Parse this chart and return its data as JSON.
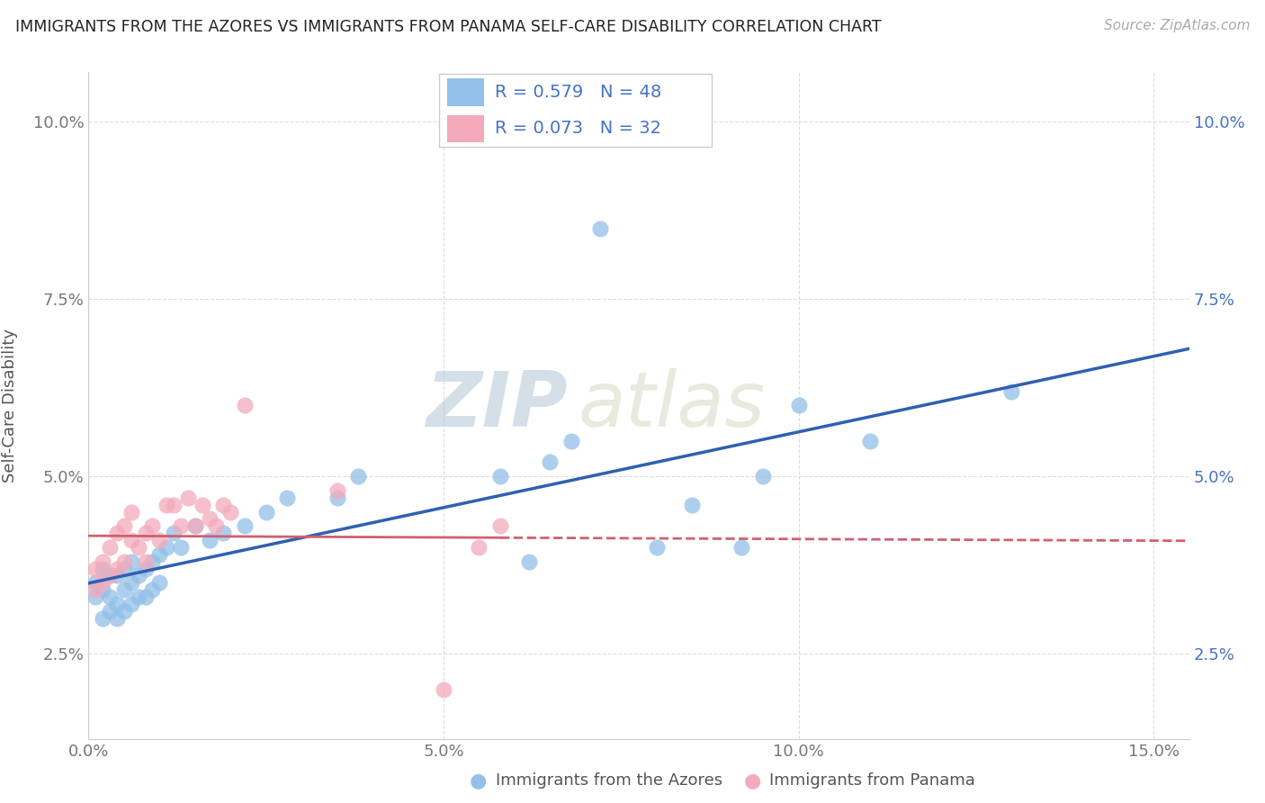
{
  "title": "IMMIGRANTS FROM THE AZORES VS IMMIGRANTS FROM PANAMA SELF-CARE DISABILITY CORRELATION CHART",
  "source": "Source: ZipAtlas.com",
  "ylabel": "Self-Care Disability",
  "xmin": 0.0,
  "xmax": 0.155,
  "ymin": 0.013,
  "ymax": 0.107,
  "xtick_vals": [
    0.0,
    0.05,
    0.1,
    0.15
  ],
  "ytick_vals": [
    0.025,
    0.05,
    0.075,
    0.1
  ],
  "azores_R": "0.579",
  "azores_N": "48",
  "panama_R": "0.073",
  "panama_N": "32",
  "azores_dot_color": "#92C0E8",
  "panama_dot_color": "#F4AABB",
  "azores_line_color": "#3060B0",
  "panama_line_color": "#D06070",
  "background_color": "#FFFFFF",
  "watermark_text": "ZIP",
  "watermark_text2": "atlas",
  "legend_label_azores": "Immigrants from the Azores",
  "legend_label_panama": "Immigrants from Panama",
  "azores_x": [
    0.001,
    0.001,
    0.002,
    0.002,
    0.002,
    0.003,
    0.003,
    0.003,
    0.004,
    0.004,
    0.004,
    0.005,
    0.005,
    0.005,
    0.006,
    0.006,
    0.006,
    0.007,
    0.007,
    0.008,
    0.008,
    0.009,
    0.009,
    0.01,
    0.01,
    0.011,
    0.012,
    0.013,
    0.015,
    0.017,
    0.019,
    0.022,
    0.025,
    0.028,
    0.035,
    0.038,
    0.058,
    0.062,
    0.065,
    0.068,
    0.072,
    0.08,
    0.085,
    0.092,
    0.095,
    0.1,
    0.11,
    0.13
  ],
  "azores_y": [
    0.033,
    0.035,
    0.03,
    0.034,
    0.037,
    0.031,
    0.033,
    0.036,
    0.03,
    0.032,
    0.036,
    0.031,
    0.034,
    0.037,
    0.032,
    0.035,
    0.038,
    0.033,
    0.036,
    0.033,
    0.037,
    0.034,
    0.038,
    0.035,
    0.039,
    0.04,
    0.042,
    0.04,
    0.043,
    0.041,
    0.042,
    0.043,
    0.045,
    0.047,
    0.047,
    0.05,
    0.05,
    0.038,
    0.052,
    0.055,
    0.085,
    0.04,
    0.046,
    0.04,
    0.05,
    0.06,
    0.055,
    0.062
  ],
  "panama_x": [
    0.001,
    0.001,
    0.002,
    0.002,
    0.003,
    0.003,
    0.004,
    0.004,
    0.005,
    0.005,
    0.006,
    0.006,
    0.007,
    0.008,
    0.008,
    0.009,
    0.01,
    0.011,
    0.012,
    0.013,
    0.014,
    0.015,
    0.016,
    0.017,
    0.018,
    0.019,
    0.02,
    0.022,
    0.035,
    0.05,
    0.055,
    0.058
  ],
  "panama_y": [
    0.034,
    0.037,
    0.035,
    0.038,
    0.036,
    0.04,
    0.037,
    0.042,
    0.038,
    0.043,
    0.041,
    0.045,
    0.04,
    0.038,
    0.042,
    0.043,
    0.041,
    0.046,
    0.046,
    0.043,
    0.047,
    0.043,
    0.046,
    0.044,
    0.043,
    0.046,
    0.045,
    0.06,
    0.048,
    0.02,
    0.04,
    0.043
  ]
}
